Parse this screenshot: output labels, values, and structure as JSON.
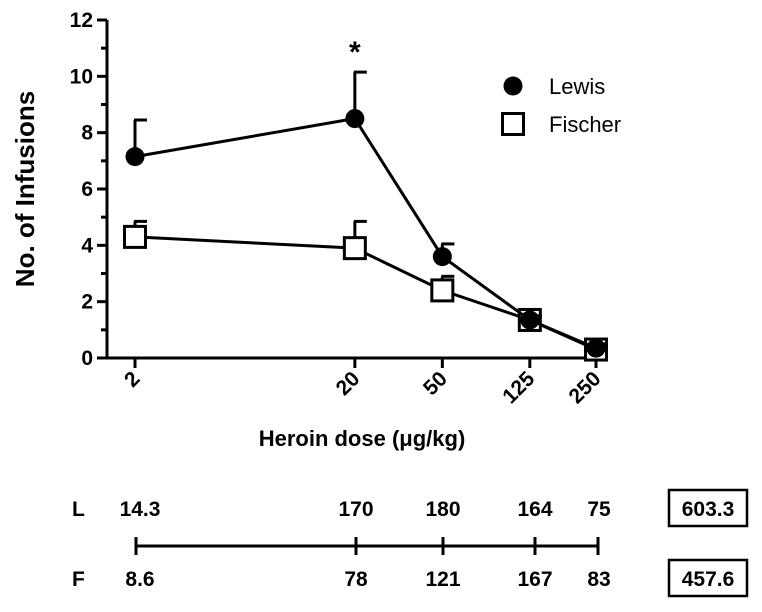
{
  "chart_data": {
    "type": "line",
    "ylabel": "No. of Infusions",
    "xlabel": "Heroin dose (μg/kg)",
    "x": [
      2,
      20,
      50,
      125,
      250
    ],
    "x_tick_labels": [
      "2",
      "20",
      "50",
      "125",
      "250"
    ],
    "x_scale": "log",
    "ylim": [
      0,
      12
    ],
    "y_ticks": [
      0,
      2,
      4,
      6,
      8,
      10,
      12
    ],
    "y_tick_labels": [
      "0",
      "2",
      "4",
      "6",
      "8",
      "10",
      "12"
    ],
    "legend_position": "top-right",
    "grid": false,
    "series": [
      {
        "name": "Lewis",
        "marker": "filled-circle",
        "color": "#000000",
        "values": [
          7.15,
          8.5,
          3.6,
          1.35,
          0.35
        ],
        "error_upper": [
          1.3,
          1.65,
          0.45,
          0.15,
          0.15
        ]
      },
      {
        "name": "Fischer",
        "marker": "open-square",
        "color": "#000000",
        "values": [
          4.3,
          3.9,
          2.4,
          1.35,
          0.3
        ],
        "error_upper": [
          0.55,
          0.95,
          0.5,
          0.15,
          0.1
        ]
      }
    ],
    "annotations": [
      {
        "text": "*",
        "x": 20,
        "y": 10.15
      }
    ]
  },
  "totals_table": {
    "rows": [
      {
        "label": "L",
        "values": [
          "14.3",
          "170",
          "180",
          "164",
          "75"
        ],
        "total": "603.3"
      },
      {
        "label": "F",
        "values": [
          "8.6",
          "78",
          "121",
          "167",
          "83"
        ],
        "total": "457.6"
      }
    ]
  }
}
